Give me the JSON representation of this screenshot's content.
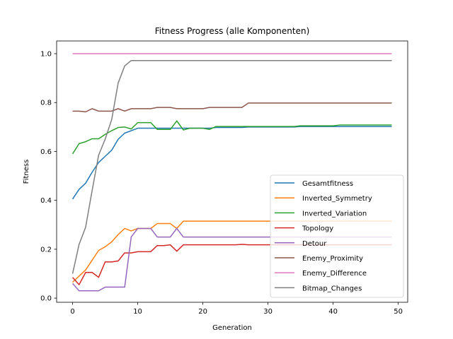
{
  "chart_data": {
    "type": "line",
    "title": "Fitness Progress (alle Komponenten)",
    "xlabel": "Generation",
    "ylabel": "Fitness",
    "xlim": [
      -2.45,
      51.45
    ],
    "ylim": [
      -0.017,
      1.052
    ],
    "xticks": [
      0,
      10,
      20,
      30,
      40,
      50
    ],
    "yticks": [
      0.0,
      0.2,
      0.4,
      0.6,
      0.8,
      1.0
    ],
    "xtick_labels": [
      "0",
      "10",
      "20",
      "30",
      "40",
      "50"
    ],
    "ytick_labels": [
      "0.0",
      "0.2",
      "0.4",
      "0.6",
      "0.8",
      "1.0"
    ],
    "grid": false,
    "legend": "lower-right",
    "x": [
      0,
      1,
      2,
      3,
      4,
      5,
      6,
      7,
      8,
      9,
      10,
      11,
      12,
      13,
      14,
      15,
      16,
      17,
      18,
      19,
      20,
      21,
      22,
      23,
      24,
      25,
      26,
      27,
      28,
      29,
      30,
      31,
      32,
      33,
      34,
      35,
      36,
      37,
      38,
      39,
      40,
      41,
      42,
      43,
      44,
      45,
      46,
      47,
      48,
      49
    ],
    "series": [
      {
        "name": "Gesamtfitness",
        "color": "#1f77b4",
        "values": [
          0.405,
          0.445,
          0.47,
          0.515,
          0.555,
          0.58,
          0.605,
          0.65,
          0.675,
          0.685,
          0.695,
          0.695,
          0.695,
          0.695,
          0.695,
          0.695,
          0.695,
          0.695,
          0.695,
          0.695,
          0.695,
          0.695,
          0.698,
          0.698,
          0.698,
          0.698,
          0.698,
          0.7,
          0.7,
          0.7,
          0.7,
          0.7,
          0.7,
          0.7,
          0.7,
          0.702,
          0.702,
          0.702,
          0.702,
          0.702,
          0.702,
          0.702,
          0.702,
          0.702,
          0.702,
          0.702,
          0.702,
          0.702,
          0.702,
          0.702
        ]
      },
      {
        "name": "Inverted_Symmetry",
        "color": "#ff7f0e",
        "values": [
          0.065,
          0.09,
          0.115,
          0.155,
          0.195,
          0.21,
          0.23,
          0.26,
          0.285,
          0.275,
          0.285,
          0.285,
          0.285,
          0.305,
          0.305,
          0.305,
          0.285,
          0.315,
          0.315,
          0.315,
          0.315,
          0.315,
          0.315,
          0.315,
          0.315,
          0.315,
          0.315,
          0.315,
          0.315,
          0.315,
          0.315,
          0.315,
          0.315,
          0.315,
          0.315,
          0.315,
          0.315,
          0.315,
          0.315,
          0.315,
          0.315,
          0.315,
          0.315,
          0.315,
          0.315,
          0.315,
          0.315,
          0.315,
          0.315,
          0.315
        ]
      },
      {
        "name": "Inverted_Variation",
        "color": "#2ca02c",
        "values": [
          0.59,
          0.632,
          0.64,
          0.652,
          0.652,
          0.67,
          0.685,
          0.698,
          0.7,
          0.692,
          0.718,
          0.718,
          0.718,
          0.69,
          0.69,
          0.69,
          0.725,
          0.688,
          0.695,
          0.695,
          0.695,
          0.69,
          0.702,
          0.702,
          0.702,
          0.702,
          0.702,
          0.702,
          0.702,
          0.702,
          0.702,
          0.702,
          0.702,
          0.702,
          0.702,
          0.705,
          0.705,
          0.705,
          0.705,
          0.705,
          0.705,
          0.708,
          0.708,
          0.708,
          0.708,
          0.708,
          0.708,
          0.708,
          0.708,
          0.708
        ]
      },
      {
        "name": "Topology",
        "color": "#d62728",
        "values": [
          0.085,
          0.055,
          0.105,
          0.105,
          0.085,
          0.148,
          0.148,
          0.152,
          0.185,
          0.185,
          0.19,
          0.19,
          0.19,
          0.215,
          0.215,
          0.218,
          0.192,
          0.218,
          0.218,
          0.218,
          0.218,
          0.218,
          0.218,
          0.218,
          0.218,
          0.218,
          0.22,
          0.218,
          0.218,
          0.218,
          0.218,
          0.218,
          0.218,
          0.218,
          0.218,
          0.218,
          0.218,
          0.218,
          0.218,
          0.218,
          0.218,
          0.218,
          0.218,
          0.218,
          0.218,
          0.218,
          0.218,
          0.218,
          0.218,
          0.218
        ]
      },
      {
        "name": "Detour",
        "color": "#9467bd",
        "values": [
          0.06,
          0.03,
          0.03,
          0.03,
          0.03,
          0.045,
          0.045,
          0.045,
          0.045,
          0.25,
          0.285,
          0.285,
          0.285,
          0.25,
          0.25,
          0.25,
          0.285,
          0.25,
          0.25,
          0.25,
          0.25,
          0.25,
          0.25,
          0.25,
          0.25,
          0.25,
          0.25,
          0.25,
          0.25,
          0.25,
          0.25,
          0.25,
          0.25,
          0.25,
          0.25,
          0.25,
          0.25,
          0.25,
          0.25,
          0.25,
          0.25,
          0.25,
          0.25,
          0.25,
          0.25,
          0.25,
          0.25,
          0.25,
          0.25,
          0.25
        ]
      },
      {
        "name": "Enemy_Proximity",
        "color": "#8c564b",
        "values": [
          0.765,
          0.765,
          0.762,
          0.775,
          0.765,
          0.765,
          0.765,
          0.775,
          0.765,
          0.775,
          0.775,
          0.775,
          0.775,
          0.78,
          0.78,
          0.78,
          0.775,
          0.775,
          0.775,
          0.775,
          0.775,
          0.78,
          0.78,
          0.78,
          0.78,
          0.78,
          0.78,
          0.798,
          0.798,
          0.798,
          0.798,
          0.798,
          0.798,
          0.798,
          0.798,
          0.798,
          0.798,
          0.798,
          0.798,
          0.798,
          0.798,
          0.798,
          0.798,
          0.798,
          0.798,
          0.798,
          0.798,
          0.798,
          0.798,
          0.798
        ]
      },
      {
        "name": "Enemy_Difference",
        "color": "#e377c2",
        "values": [
          1.0,
          1.0,
          1.0,
          1.0,
          1.0,
          1.0,
          1.0,
          1.0,
          1.0,
          1.0,
          1.0,
          1.0,
          1.0,
          1.0,
          1.0,
          1.0,
          1.0,
          1.0,
          1.0,
          1.0,
          1.0,
          1.0,
          1.0,
          1.0,
          1.0,
          1.0,
          1.0,
          1.0,
          1.0,
          1.0,
          1.0,
          1.0,
          1.0,
          1.0,
          1.0,
          1.0,
          1.0,
          1.0,
          1.0,
          1.0,
          1.0,
          1.0,
          1.0,
          1.0,
          1.0,
          1.0,
          1.0,
          1.0,
          1.0,
          1.0
        ]
      },
      {
        "name": "Bitmap_Changes",
        "color": "#7f7f7f",
        "values": [
          0.1,
          0.22,
          0.29,
          0.44,
          0.585,
          0.65,
          0.73,
          0.88,
          0.95,
          0.972,
          0.972,
          0.972,
          0.972,
          0.972,
          0.972,
          0.972,
          0.972,
          0.972,
          0.972,
          0.972,
          0.972,
          0.972,
          0.972,
          0.972,
          0.972,
          0.972,
          0.972,
          0.972,
          0.972,
          0.972,
          0.972,
          0.972,
          0.972,
          0.972,
          0.972,
          0.972,
          0.972,
          0.972,
          0.972,
          0.972,
          0.972,
          0.972,
          0.972,
          0.972,
          0.972,
          0.972,
          0.972,
          0.972,
          0.972,
          0.972
        ]
      }
    ]
  }
}
